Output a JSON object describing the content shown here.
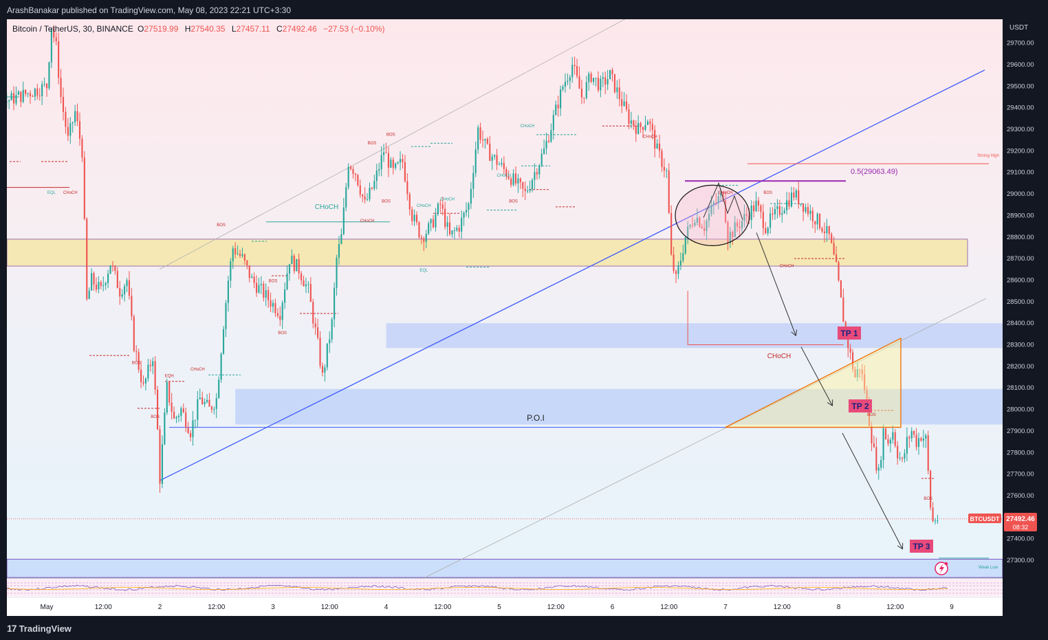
{
  "header": {
    "published_by": "ArashBanakar published on TradingView.com, May 08, 2023 22:21 UTC+3:30"
  },
  "legend": {
    "symbol": "Bitcoin / TetherUS, 30, BINANCE",
    "open_label": "O",
    "open": "27519.99",
    "high_label": "H",
    "high": "27540.35",
    "low_label": "L",
    "low": "27457.11",
    "close_label": "C",
    "close": "27492.46",
    "change": "−27.53 (−0.10%)"
  },
  "price_axis": {
    "currency": "USDT",
    "last_symbol": "BTCUSDT",
    "last_price": "27492.46",
    "countdown": "08:32"
  },
  "footer": {
    "brand": "TradingView"
  },
  "colors": {
    "background": "#131722",
    "bull": "#26a69a",
    "bear": "#ef5350",
    "trendline": "#3d5afe",
    "fib": "#9c27b0",
    "tp_label": "#e84a7a",
    "demand_zone": "#2962ff",
    "supply_zone": "#f5e6a8"
  },
  "annotations": {
    "fib_label": "0.5(29063.49)",
    "poi_label": "P.O.I",
    "tp1": "TP 1",
    "tp2": "TP 2",
    "tp3": "TP 3",
    "strong_high": "Strong High",
    "weak_low": "Weak Low",
    "choch_big": "CHoCH",
    "choch_red": "CHoCH",
    "small_labels": [
      {
        "t": "EQL",
        "x": "May 1 01:00",
        "y": 29000
      },
      {
        "t": "CHoCH",
        "x": "May 1 05:00",
        "y": 29000
      },
      {
        "t": "BOS",
        "x": "May 1 19:00",
        "y": 28210
      },
      {
        "t": "EQH",
        "x": "May 2 02:00",
        "y": 28150
      },
      {
        "t": "BOS",
        "x": "May 1 23:00",
        "y": 27960
      },
      {
        "t": "CHoCH",
        "x": "May 2 08:00",
        "y": 28180
      },
      {
        "t": "BOS",
        "x": "May 2 13:00",
        "y": 28850
      },
      {
        "t": "BOS",
        "x": "May 3 00:00",
        "y": 28590
      },
      {
        "t": "BOS",
        "x": "May 3 02:00",
        "y": 28350
      },
      {
        "t": "CHoCH",
        "x": "May 3 20:00",
        "y": 28870
      },
      {
        "t": "BOS",
        "x": "May 3 21:00",
        "y": 29230
      },
      {
        "t": "BOS",
        "x": "May 4 01:00",
        "y": 29270
      },
      {
        "t": "CHoCH",
        "x": "May 4 08:00",
        "y": 28940
      },
      {
        "t": "BOS",
        "x": "May 4 00:00",
        "y": 28960
      },
      {
        "t": "EQL",
        "x": "May 4 08:00",
        "y": 28640
      },
      {
        "t": "CHoCH",
        "x": "May 4 13:00",
        "y": 28970
      },
      {
        "t": "CHoCH",
        "x": "May 5 01:00",
        "y": 29080
      },
      {
        "t": "CHoCH",
        "x": "May 5 06:00",
        "y": 29310
      },
      {
        "t": "BOS",
        "x": "May 5 03:00",
        "y": 28960
      },
      {
        "t": "CHoCH",
        "x": "May 6 08:00",
        "y": 29260
      },
      {
        "t": "CHoCH",
        "x": "May 7 00:00",
        "y": 29000
      },
      {
        "t": "BOS",
        "x": "May 7 09:00",
        "y": 29000
      },
      {
        "t": "CHoCH",
        "x": "May 7 13:00",
        "y": 28660
      },
      {
        "t": "BOS",
        "x": "May 8 07:00",
        "y": 27970
      },
      {
        "t": "BOS",
        "x": "May 8 19:00",
        "y": 27580
      }
    ]
  },
  "chart_data": {
    "type": "line",
    "title": "",
    "xlabel": "",
    "ylabel": "USDT",
    "series_kind": "candlestick",
    "timeframe_minutes": 30,
    "ylim": [
      27200,
      29800
    ],
    "x_range": [
      "May 1 00:00",
      "May 9 12:00"
    ],
    "yticks": [
      "27300.00",
      "27400.00",
      "27500.00",
      "27600.00",
      "27700.00",
      "27800.00",
      "27900.00",
      "28000.00",
      "28100.00",
      "28200.00",
      "28300.00",
      "28400.00",
      "28500.00",
      "28600.00",
      "28700.00",
      "28800.00",
      "28900.00",
      "29000.00",
      "29100.00",
      "29200.00",
      "29300.00",
      "29400.00",
      "29500.00",
      "29600.00",
      "29700.00"
    ],
    "xticks": [
      {
        "label": "May",
        "x": "May 1 00:00"
      },
      {
        "label": "12:00",
        "x": "May 1 12:00"
      },
      {
        "label": "2",
        "x": "May 2 00:00"
      },
      {
        "label": "12:00",
        "x": "May 2 12:00"
      },
      {
        "label": "3",
        "x": "May 3 00:00"
      },
      {
        "label": "12:00",
        "x": "May 3 12:00"
      },
      {
        "label": "4",
        "x": "May 4 00:00"
      },
      {
        "label": "12:00",
        "x": "May 4 12:00"
      },
      {
        "label": "5",
        "x": "May 5 00:00"
      },
      {
        "label": "12:00",
        "x": "May 5 12:00"
      },
      {
        "label": "6",
        "x": "May 6 00:00"
      },
      {
        "label": "12:00",
        "x": "May 6 12:00"
      },
      {
        "label": "7",
        "x": "May 7 00:00"
      },
      {
        "label": "12:00",
        "x": "May 7 12:00"
      },
      {
        "label": "8",
        "x": "May 8 00:00"
      },
      {
        "label": "12:00",
        "x": "May 8 12:00"
      },
      {
        "label": "9",
        "x": "May 9 00:00"
      }
    ],
    "price_path": [
      [
        "Apr 30 23:30",
        29300
      ],
      [
        "May 1 00:30",
        29500
      ],
      [
        "May 1 01:30",
        29780
      ],
      [
        "May 1 02:30",
        29680
      ],
      [
        "May 1 03:30",
        29450
      ],
      [
        "May 1 05:00",
        29250
      ],
      [
        "May 1 06:30",
        29380
      ],
      [
        "May 1 08:00",
        29200
      ],
      [
        "May 1 09:00",
        28500
      ],
      [
        "May 1 10:00",
        28600
      ],
      [
        "May 1 12:00",
        28550
      ],
      [
        "May 1 14:00",
        28680
      ],
      [
        "May 1 16:00",
        28550
      ],
      [
        "May 1 17:30",
        28600
      ],
      [
        "May 1 19:00",
        28300
      ],
      [
        "May 1 21:00",
        28100
      ],
      [
        "May 1 23:00",
        28250
      ],
      [
        "May 2 00:00",
        27900
      ],
      [
        "May 2 00:30",
        27680
      ],
      [
        "May 2 02:00",
        28100
      ],
      [
        "May 2 03:30",
        27950
      ],
      [
        "May 2 05:00",
        28000
      ],
      [
        "May 2 07:00",
        27900
      ],
      [
        "May 2 09:00",
        28050
      ],
      [
        "May 2 11:00",
        28000
      ],
      [
        "May 2 12:30",
        28050
      ],
      [
        "May 2 14:00",
        28400
      ],
      [
        "May 2 15:00",
        28600
      ],
      [
        "May 2 16:00",
        28750
      ],
      [
        "May 2 18:00",
        28700
      ],
      [
        "May 2 20:00",
        28600
      ],
      [
        "May 2 22:00",
        28550
      ],
      [
        "May 3 00:00",
        28500
      ],
      [
        "May 3 02:00",
        28450
      ],
      [
        "May 3 04:00",
        28700
      ],
      [
        "May 3 06:00",
        28650
      ],
      [
        "May 3 08:00",
        28550
      ],
      [
        "May 3 10:00",
        28300
      ],
      [
        "May 3 11:00",
        28150
      ],
      [
        "May 3 13:00",
        28400
      ],
      [
        "May 3 14:00",
        28700
      ],
      [
        "May 3 15:00",
        28800
      ],
      [
        "May 3 16:30",
        29150
      ],
      [
        "May 3 18:00",
        29100
      ],
      [
        "May 3 20:00",
        28950
      ],
      [
        "May 3 22:00",
        29050
      ],
      [
        "May 4 00:00",
        29200
      ],
      [
        "May 4 02:00",
        29100
      ],
      [
        "May 4 04:00",
        29150
      ],
      [
        "May 4 06:00",
        28900
      ],
      [
        "May 4 08:00",
        28800
      ],
      [
        "May 4 10:00",
        28850
      ],
      [
        "May 4 12:00",
        28950
      ],
      [
        "May 4 14:00",
        28800
      ],
      [
        "May 4 16:00",
        28850
      ],
      [
        "May 4 18:00",
        28950
      ],
      [
        "May 4 20:00",
        29300
      ],
      [
        "May 4 22:00",
        29200
      ],
      [
        "May 5 00:00",
        29150
      ],
      [
        "May 5 02:00",
        29100
      ],
      [
        "May 5 04:00",
        29050
      ],
      [
        "May 5 06:00",
        29000
      ],
      [
        "May 5 08:00",
        29100
      ],
      [
        "May 5 10:00",
        29200
      ],
      [
        "May 5 12:00",
        29350
      ],
      [
        "May 5 14:00",
        29500
      ],
      [
        "May 5 16:00",
        29600
      ],
      [
        "May 5 18:00",
        29450
      ],
      [
        "May 5 20:00",
        29550
      ],
      [
        "May 5 22:00",
        29500
      ],
      [
        "May 6 00:00",
        29550
      ],
      [
        "May 6 02:00",
        29450
      ],
      [
        "May 6 04:00",
        29350
      ],
      [
        "May 6 06:00",
        29300
      ],
      [
        "May 6 08:00",
        29350
      ],
      [
        "May 6 10:00",
        29200
      ],
      [
        "May 6 12:00",
        29100
      ],
      [
        "May 6 13:00",
        28700
      ],
      [
        "May 6 14:00",
        28600
      ],
      [
        "May 6 16:00",
        28800
      ],
      [
        "May 6 18:00",
        28900
      ],
      [
        "May 6 20:00",
        28850
      ],
      [
        "May 6 22:00",
        28950
      ],
      [
        "May 7 00:00",
        29000
      ],
      [
        "May 7 01:00",
        28800
      ],
      [
        "May 7 03:00",
        28850
      ],
      [
        "May 7 05:00",
        28900
      ],
      [
        "May 7 07:00",
        28950
      ],
      [
        "May 7 09:00",
        28850
      ],
      [
        "May 7 11:00",
        28900
      ],
      [
        "May 7 13:00",
        28950
      ],
      [
        "May 7 15:00",
        29000
      ],
      [
        "May 7 17:00",
        28950
      ],
      [
        "May 7 19:00",
        28900
      ],
      [
        "May 7 21:00",
        28850
      ],
      [
        "May 7 22:30",
        28800
      ],
      [
        "May 8 00:00",
        28650
      ],
      [
        "May 8 01:00",
        28500
      ],
      [
        "May 8 02:00",
        28350
      ],
      [
        "May 8 03:00",
        28250
      ],
      [
        "May 8 04:00",
        28150
      ],
      [
        "May 8 05:00",
        28200
      ],
      [
        "May 8 06:00",
        28100
      ],
      [
        "May 8 07:00",
        27950
      ],
      [
        "May 8 08:00",
        27800
      ],
      [
        "May 8 09:00",
        27700
      ],
      [
        "May 8 10:00",
        27900
      ],
      [
        "May 8 11:00",
        27850
      ],
      [
        "May 8 12:00",
        27900
      ],
      [
        "May 8 13:00",
        27800
      ],
      [
        "May 8 14:00",
        27750
      ],
      [
        "May 8 15:00",
        27850
      ],
      [
        "May 8 16:00",
        27900
      ],
      [
        "May 8 17:00",
        27850
      ],
      [
        "May 8 18:00",
        27880
      ],
      [
        "May 8 19:00",
        27860
      ],
      [
        "May 8 20:00",
        27550
      ],
      [
        "May 8 20:30",
        27480
      ],
      [
        "May 8 21:00",
        27492.46
      ]
    ]
  }
}
